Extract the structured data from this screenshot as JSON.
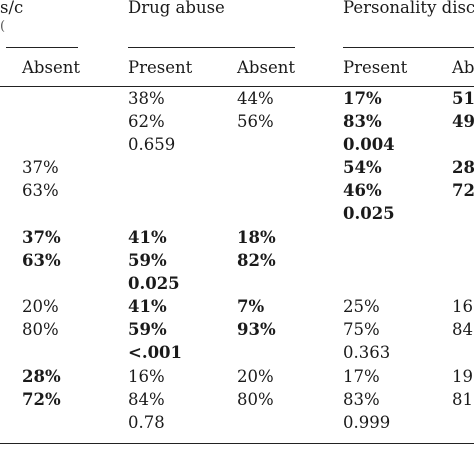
{
  "headers": {
    "col1": "s/c",
    "col1_sub": "(",
    "drug_abuse": "Drug abuse",
    "personality": "Personality disc"
  },
  "subheaders": {
    "absent_1": "Absent",
    "present_2": "Present",
    "absent_2": "Absent",
    "present_3": "Present",
    "absent_3": "Ab"
  },
  "rows": [
    {
      "c1": "",
      "c2": "38%",
      "c3": "44%",
      "c4": "17%",
      "c5": "51"
    },
    {
      "c1": "",
      "c2": "62%",
      "c3": "56%",
      "c4": "83%",
      "c5": "49"
    },
    {
      "c1": "",
      "c2": "0.659",
      "c3": "",
      "c4": "0.004",
      "c5": ""
    },
    {
      "c1": "37%",
      "c2": "",
      "c3": "",
      "c4": "54%",
      "c5": "28"
    },
    {
      "c1": "63%",
      "c2": "",
      "c3": "",
      "c4": "46%",
      "c5": "72"
    },
    {
      "c1": "",
      "c2": "",
      "c3": "",
      "c4": "0.025",
      "c5": ""
    },
    {
      "c1": "37%",
      "c2": "41%",
      "c3": "18%",
      "c4": "",
      "c5": ""
    },
    {
      "c1": "63%",
      "c2": "59%",
      "c3": "82%",
      "c4": "",
      "c5": ""
    },
    {
      "c1": "",
      "c2": "0.025",
      "c3": "",
      "c4": "",
      "c5": ""
    },
    {
      "c1": "20%",
      "c2": "41%",
      "c3": "7%",
      "c4": "25%",
      "c5": "16"
    },
    {
      "c1": "80%",
      "c2": "59%",
      "c3": "93%",
      "c4": "75%",
      "c5": "84"
    },
    {
      "c1": "",
      "c2": "<.001",
      "c3": "",
      "c4": "0.363",
      "c5": ""
    },
    {
      "c1": "28%",
      "c2": "16%",
      "c3": "20%",
      "c4": "17%",
      "c5": "19"
    },
    {
      "c1": "72%",
      "c2": "84%",
      "c3": "80%",
      "c4": "83%",
      "c5": "81"
    },
    {
      "c1": "",
      "c2": "0.78",
      "c3": "",
      "c4": "0.999",
      "c5": ""
    }
  ]
}
